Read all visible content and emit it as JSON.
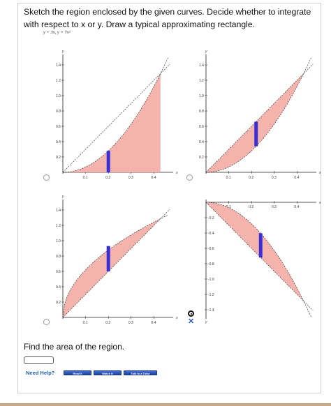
{
  "question": {
    "line1": "Sketch the region enclosed by the given curves. Decide whether to integrate",
    "line2": "with respect to x or y. Draw a typical approximating rectangle.",
    "equations": "y = 3x,  y = 7x²"
  },
  "area_prompt": "Find the area of the region.",
  "answer_value": "",
  "help": {
    "label": "Need Help?",
    "read_it": "Read It",
    "watch_it": "Watch It",
    "talk_to_tutor": "Talk to a Tutor"
  },
  "options": [
    {
      "id": "option-top-left",
      "selected": false
    },
    {
      "id": "option-top-right",
      "selected": false
    },
    {
      "id": "option-bottom-left",
      "selected": false
    },
    {
      "id": "option-bottom-right",
      "selected": true,
      "result_mark": "✕"
    }
  ],
  "colors": {
    "region_fill": "#f4b3ac",
    "rectangle": "#3a2fd6",
    "curve": "#222222",
    "help_button": "#2b55b8",
    "link": "#1f5fae",
    "wrong_mark": "#2a5bd7"
  },
  "chart_data": [
    {
      "type": "area",
      "panel": "top-left",
      "axis_labels": {
        "x": "x",
        "y": "y"
      },
      "x_ticks": [
        "0.1",
        "0.2",
        "0.3",
        "0.4"
      ],
      "y_ticks": [
        "0.2",
        "0.4",
        "0.6",
        "0.8",
        "1.0",
        "1.2",
        "1.4"
      ],
      "xlim": [
        0,
        0.46
      ],
      "ylim": [
        0,
        1.5
      ],
      "curves": [
        "y = 3x",
        "y = 7x^2"
      ],
      "shaded_between": [
        "x-axis",
        "y = 7x^2"
      ],
      "shaded_x_range": [
        0,
        0.4286
      ],
      "rectangle": {
        "orientation": "vertical",
        "x": 0.2,
        "from": 0,
        "to": 0.28
      }
    },
    {
      "type": "area",
      "panel": "top-right",
      "axis_labels": {
        "x": "x",
        "y": "y"
      },
      "x_ticks": [
        "0.1",
        "0.2",
        "0.3",
        "0.4"
      ],
      "y_ticks": [
        "0.2",
        "0.4",
        "0.6",
        "0.8",
        "1.0",
        "1.2",
        "1.4"
      ],
      "xlim": [
        0,
        0.46
      ],
      "ylim": [
        0,
        1.5
      ],
      "curves": [
        "y = 3x",
        "y = 7x^2"
      ],
      "shaded_between": [
        "y = 3x",
        "y = 7x^2"
      ],
      "shaded_x_range": [
        0,
        0.4286
      ],
      "rectangle": {
        "orientation": "vertical",
        "x": 0.22,
        "from": 0.3388,
        "to": 0.66
      }
    },
    {
      "type": "area",
      "panel": "bottom-left",
      "axis_labels": {
        "x": "x",
        "y": "y"
      },
      "x_ticks": [
        "0.1",
        "0.2",
        "0.3",
        "0.4"
      ],
      "y_ticks": [
        "0.2",
        "0.4",
        "0.6",
        "0.8",
        "1.0",
        "1.2",
        "1.4"
      ],
      "xlim": [
        0,
        0.46
      ],
      "ylim": [
        0,
        1.5
      ],
      "curves": [
        "x = y/3",
        "x = 7y^2 (rotated)"
      ],
      "shaded_between": [
        "y = 3x",
        "y = sqrt(x/7)*7"
      ],
      "shaded_x_range": [
        0,
        0.4286
      ],
      "rectangle": {
        "orientation": "vertical",
        "x": 0.2,
        "from": 0.6,
        "to": 0.93
      }
    },
    {
      "type": "area",
      "panel": "bottom-right",
      "axis_labels": {
        "x": "x",
        "y": "y"
      },
      "x_ticks": [
        "0.1",
        "0.2",
        "0.3",
        "0.4"
      ],
      "y_ticks": [
        "-0.2",
        "-0.4",
        "-0.6",
        "-0.8",
        "-1.0",
        "-1.2",
        "-1.4"
      ],
      "xlim": [
        0,
        0.46
      ],
      "ylim": [
        -1.5,
        0
      ],
      "curves": [
        "y = -3x",
        "y = -7x^2"
      ],
      "shaded_between": [
        "y = -3x",
        "y = -7x^2"
      ],
      "shaded_x_range": [
        0,
        0.4286
      ],
      "rectangle": {
        "orientation": "vertical",
        "x": 0.24,
        "from": -0.72,
        "to": -0.4032
      }
    }
  ]
}
